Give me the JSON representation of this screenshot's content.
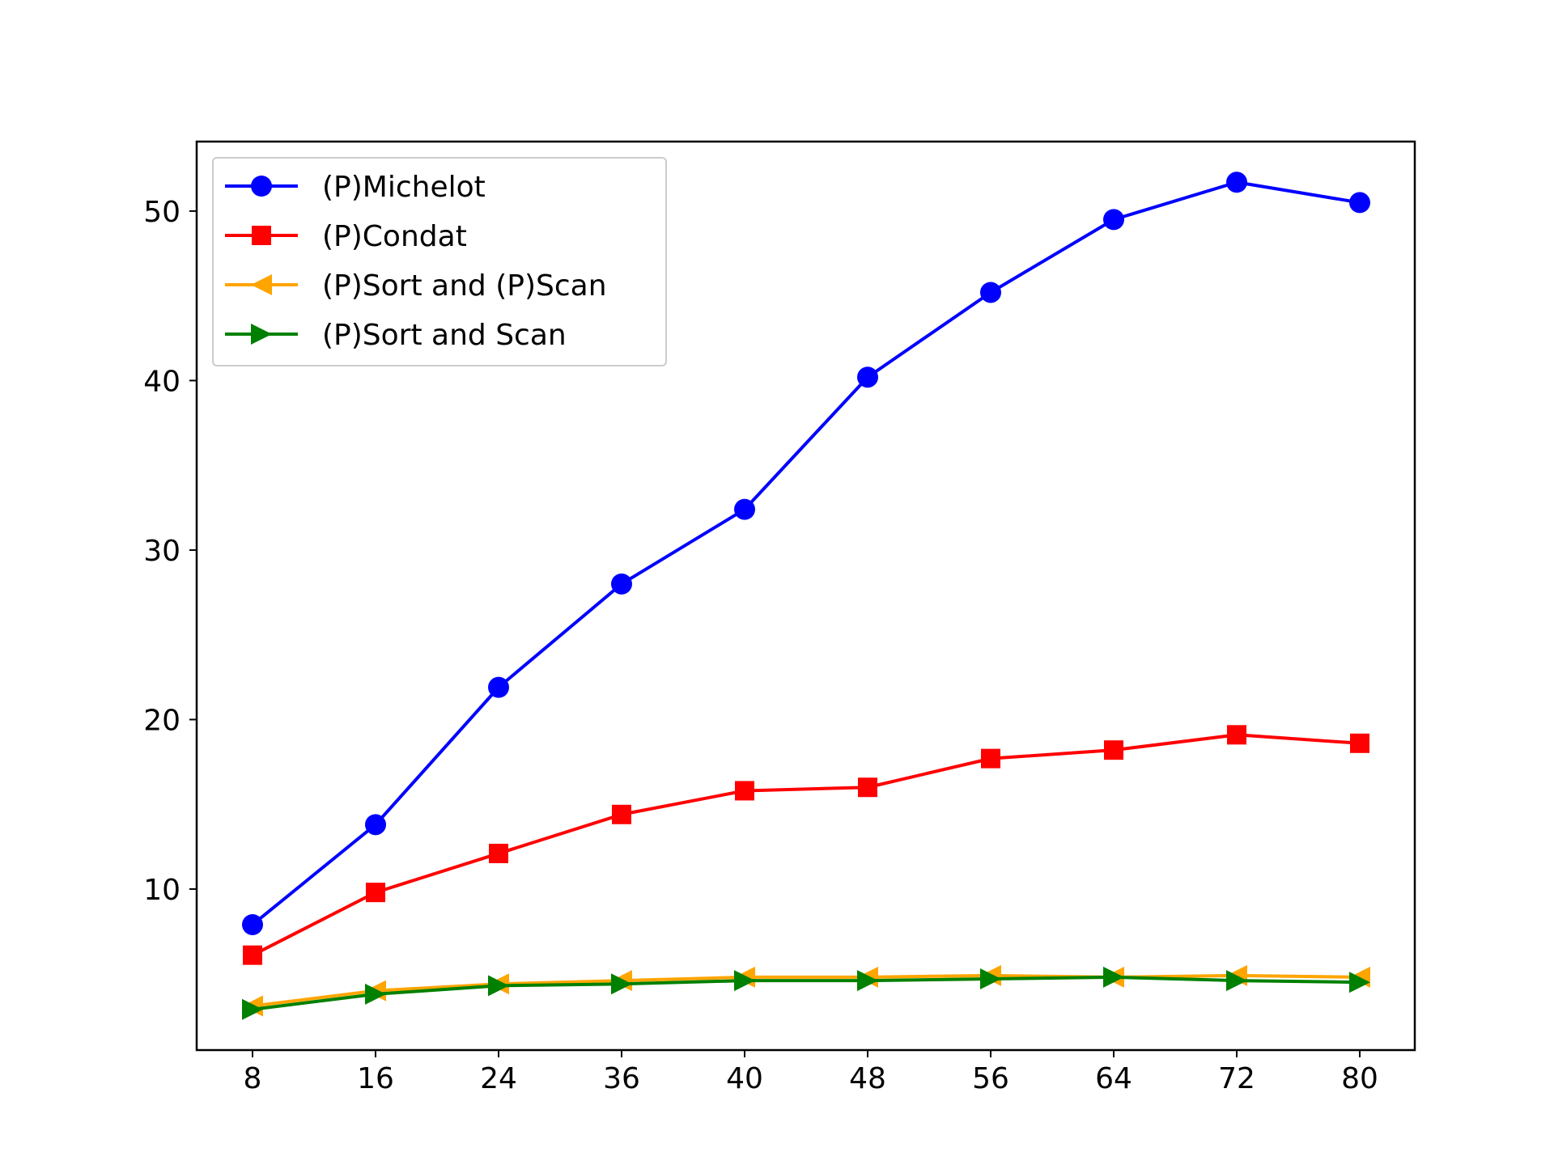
{
  "chart_data": {
    "type": "line",
    "title": "",
    "xlabel": "",
    "ylabel": "",
    "categories": [
      "8",
      "16",
      "24",
      "36",
      "40",
      "48",
      "56",
      "64",
      "72",
      "80"
    ],
    "ylim": [
      0.5,
      54.1
    ],
    "yticks": [
      10,
      20,
      30,
      40,
      50
    ],
    "grid": false,
    "legend_position": "top-left",
    "series": [
      {
        "name": "(P)Michelot",
        "color": "#0000ff",
        "marker": "circle",
        "values": [
          7.9,
          13.8,
          21.9,
          28.0,
          32.4,
          40.2,
          45.2,
          49.5,
          51.7,
          50.5
        ]
      },
      {
        "name": "(P)Condat",
        "color": "#ff0000",
        "marker": "square",
        "values": [
          6.1,
          9.8,
          12.1,
          14.4,
          15.8,
          16.0,
          17.7,
          18.2,
          19.1,
          18.6
        ]
      },
      {
        "name": "(P)Sort and (P)Scan",
        "color": "#ffa500",
        "marker": "triangle-left",
        "values": [
          3.1,
          4.0,
          4.4,
          4.6,
          4.8,
          4.8,
          4.9,
          4.8,
          4.9,
          4.8
        ]
      },
      {
        "name": "(P)Sort and Scan",
        "color": "#008000",
        "marker": "triangle-right",
        "values": [
          2.9,
          3.8,
          4.3,
          4.4,
          4.6,
          4.6,
          4.7,
          4.8,
          4.6,
          4.5
        ]
      }
    ]
  }
}
